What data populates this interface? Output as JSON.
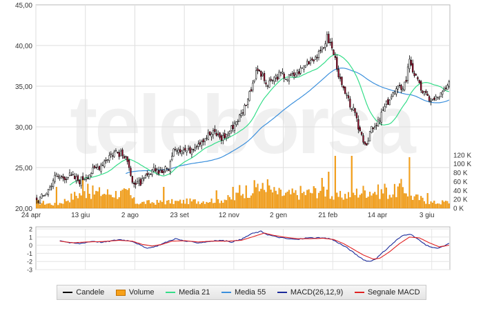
{
  "chart_data": [
    {
      "type": "candlestick",
      "title": "",
      "xlabel": "",
      "ylabel": "",
      "price_axis": {
        "min": 20,
        "max": 45,
        "ticks": [
          "20,00",
          "25,00",
          "30,00",
          "35,00",
          "40,00",
          "45,00"
        ]
      },
      "volume_axis": {
        "min": 0,
        "max": 140000,
        "ticks": [
          "0 K",
          "20 K",
          "40 K",
          "60 K",
          "80 K",
          "100 K",
          "120 K"
        ]
      },
      "x_tick_labels": [
        "24 apr",
        "13 giu",
        "2 ago",
        "23 set",
        "12 nov",
        "2 gen",
        "21 feb",
        "14 apr",
        "3 giu"
      ],
      "grid": true,
      "watermark": "teleborsa",
      "colors": {
        "up": "#ffffff",
        "down": "#a01030",
        "wick": "#000000",
        "volume": "#f7a11a",
        "media21": "#33dd88",
        "media55": "#3a8fdc"
      },
      "price_knots": [
        [
          0,
          21.0
        ],
        [
          4,
          21.5
        ],
        [
          8,
          22.6
        ],
        [
          10,
          23.6
        ],
        [
          12,
          24.0
        ],
        [
          14,
          23.8
        ],
        [
          20,
          24.0
        ],
        [
          26,
          23.4
        ],
        [
          30,
          24.0
        ],
        [
          34,
          24.6
        ],
        [
          38,
          25.2
        ],
        [
          44,
          26.5
        ],
        [
          48,
          27.0
        ],
        [
          52,
          26.5
        ],
        [
          56,
          25.4
        ],
        [
          58,
          23.4
        ],
        [
          60,
          22.8
        ],
        [
          64,
          23.3
        ],
        [
          68,
          24.0
        ],
        [
          72,
          24.8
        ],
        [
          76,
          24.5
        ],
        [
          80,
          25.0
        ],
        [
          84,
          27.5
        ],
        [
          88,
          27.3
        ],
        [
          92,
          27.0
        ],
        [
          96,
          27.8
        ],
        [
          100,
          28.4
        ],
        [
          104,
          29.0
        ],
        [
          108,
          29.3
        ],
        [
          112,
          28.6
        ],
        [
          116,
          29.2
        ],
        [
          120,
          30.5
        ],
        [
          124,
          31.5
        ],
        [
          128,
          33.5
        ],
        [
          131,
          35.5
        ],
        [
          134,
          37.0
        ],
        [
          136,
          36.4
        ],
        [
          140,
          35.0
        ],
        [
          144,
          36.0
        ],
        [
          148,
          36.5
        ],
        [
          152,
          36.0
        ],
        [
          156,
          36.4
        ],
        [
          160,
          37.0
        ],
        [
          164,
          38.0
        ],
        [
          168,
          38.5
        ],
        [
          172,
          39.0
        ],
        [
          176,
          41.0
        ],
        [
          178,
          40.2
        ],
        [
          180,
          39.0
        ],
        [
          182,
          37.5
        ],
        [
          184,
          35.5
        ],
        [
          188,
          33.5
        ],
        [
          192,
          32.0
        ],
        [
          195,
          30.0
        ],
        [
          198,
          28.5
        ],
        [
          200,
          27.8
        ],
        [
          202,
          29.5
        ],
        [
          206,
          30.0
        ],
        [
          210,
          32.0
        ],
        [
          214,
          33.5
        ],
        [
          218,
          34.5
        ],
        [
          222,
          35.0
        ],
        [
          224,
          35.8
        ],
        [
          226,
          38.5
        ],
        [
          228,
          37.0
        ],
        [
          232,
          35.0
        ],
        [
          236,
          33.8
        ],
        [
          240,
          33.2
        ],
        [
          244,
          33.8
        ],
        [
          248,
          34.5
        ],
        [
          250,
          35.5
        ]
      ],
      "volume_knots": [
        [
          0,
          14000
        ],
        [
          12,
          8000
        ],
        [
          24,
          30000
        ],
        [
          30,
          36000
        ],
        [
          40,
          34000
        ],
        [
          56,
          32000
        ],
        [
          60,
          12000
        ],
        [
          100,
          16000
        ],
        [
          120,
          22000
        ],
        [
          124,
          38000
        ],
        [
          128,
          40000
        ],
        [
          134,
          46000
        ],
        [
          150,
          30000
        ],
        [
          165,
          35000
        ],
        [
          174,
          44000
        ],
        [
          180,
          24000
        ],
        [
          188,
          30000
        ],
        [
          200,
          40000
        ],
        [
          215,
          34000
        ],
        [
          222,
          48000
        ],
        [
          228,
          26000
        ],
        [
          240,
          12000
        ],
        [
          250,
          14000
        ]
      ],
      "volume_spikes": [
        [
          12,
          48000
        ],
        [
          28,
          70000
        ],
        [
          31,
          55000
        ],
        [
          56,
          45000
        ],
        [
          77,
          48000
        ],
        [
          109,
          40000
        ],
        [
          119,
          48000
        ],
        [
          123,
          52000
        ],
        [
          134,
          55000
        ],
        [
          140,
          65000
        ],
        [
          160,
          50000
        ],
        [
          173,
          68000
        ],
        [
          177,
          82000
        ],
        [
          181,
          118000
        ],
        [
          191,
          118000
        ],
        [
          211,
          55000
        ],
        [
          226,
          115000
        ],
        [
          237,
          34000
        ]
      ],
      "series": [
        {
          "name": "Candele"
        },
        {
          "name": "Volume"
        },
        {
          "name": "Media 21"
        },
        {
          "name": "Media 55"
        }
      ]
    },
    {
      "type": "line",
      "y_axis": {
        "min": -3,
        "max": 2,
        "ticks": [
          "2",
          "1",
          "0",
          "-1",
          "-2",
          "-3"
        ]
      },
      "grid": true,
      "macd_knots": [
        [
          14,
          0.6
        ],
        [
          20,
          0.3
        ],
        [
          26,
          0.2
        ],
        [
          34,
          0.5
        ],
        [
          40,
          0.35
        ],
        [
          50,
          0.7
        ],
        [
          58,
          0.5
        ],
        [
          62,
          0.1
        ],
        [
          66,
          -0.35
        ],
        [
          70,
          -0.3
        ],
        [
          74,
          0.0
        ],
        [
          80,
          0.5
        ],
        [
          84,
          0.8
        ],
        [
          90,
          0.5
        ],
        [
          98,
          0.3
        ],
        [
          106,
          0.5
        ],
        [
          112,
          0.6
        ],
        [
          118,
          0.4
        ],
        [
          124,
          0.7
        ],
        [
          130,
          1.4
        ],
        [
          136,
          1.7
        ],
        [
          140,
          1.3
        ],
        [
          146,
          1.0
        ],
        [
          152,
          0.8
        ],
        [
          158,
          0.7
        ],
        [
          164,
          0.9
        ],
        [
          170,
          0.9
        ],
        [
          178,
          0.8
        ],
        [
          182,
          0.4
        ],
        [
          188,
          -0.3
        ],
        [
          194,
          -1.2
        ],
        [
          198,
          -1.8
        ],
        [
          202,
          -2.0
        ],
        [
          206,
          -1.6
        ],
        [
          212,
          -0.5
        ],
        [
          218,
          0.6
        ],
        [
          222,
          1.2
        ],
        [
          226,
          1.4
        ],
        [
          230,
          0.9
        ],
        [
          236,
          0.0
        ],
        [
          242,
          -0.4
        ],
        [
          246,
          -0.2
        ],
        [
          250,
          0.2
        ]
      ],
      "signal_knots": [
        [
          14,
          0.5
        ],
        [
          22,
          0.3
        ],
        [
          30,
          0.4
        ],
        [
          40,
          0.45
        ],
        [
          50,
          0.6
        ],
        [
          58,
          0.5
        ],
        [
          64,
          0.1
        ],
        [
          70,
          -0.1
        ],
        [
          76,
          0.1
        ],
        [
          82,
          0.5
        ],
        [
          90,
          0.55
        ],
        [
          98,
          0.4
        ],
        [
          106,
          0.5
        ],
        [
          116,
          0.5
        ],
        [
          124,
          0.6
        ],
        [
          132,
          1.1
        ],
        [
          138,
          1.5
        ],
        [
          144,
          1.2
        ],
        [
          150,
          1.0
        ],
        [
          158,
          0.8
        ],
        [
          166,
          0.8
        ],
        [
          174,
          0.85
        ],
        [
          180,
          0.7
        ],
        [
          186,
          0.2
        ],
        [
          192,
          -0.5
        ],
        [
          198,
          -1.2
        ],
        [
          204,
          -1.7
        ],
        [
          208,
          -1.6
        ],
        [
          214,
          -0.8
        ],
        [
          220,
          0.2
        ],
        [
          226,
          1.0
        ],
        [
          232,
          0.9
        ],
        [
          238,
          0.3
        ],
        [
          244,
          -0.2
        ],
        [
          250,
          0.0
        ]
      ],
      "series": [
        {
          "name": "MACD(26,12,9)"
        },
        {
          "name": "Segnale MACD"
        }
      ]
    }
  ],
  "legend": [
    {
      "label": "Candele",
      "kind": "line",
      "color": "#000000"
    },
    {
      "label": "Volume",
      "kind": "box",
      "color": "#f7a11a"
    },
    {
      "label": "Media 21",
      "kind": "line",
      "color": "#33dd88"
    },
    {
      "label": "Media 55",
      "kind": "line",
      "color": "#3a8fdc"
    },
    {
      "label": "MACD(26,12,9)",
      "kind": "line",
      "color": "#1a2a9a"
    },
    {
      "label": "Segnale MACD",
      "kind": "line",
      "color": "#e02020"
    }
  ]
}
